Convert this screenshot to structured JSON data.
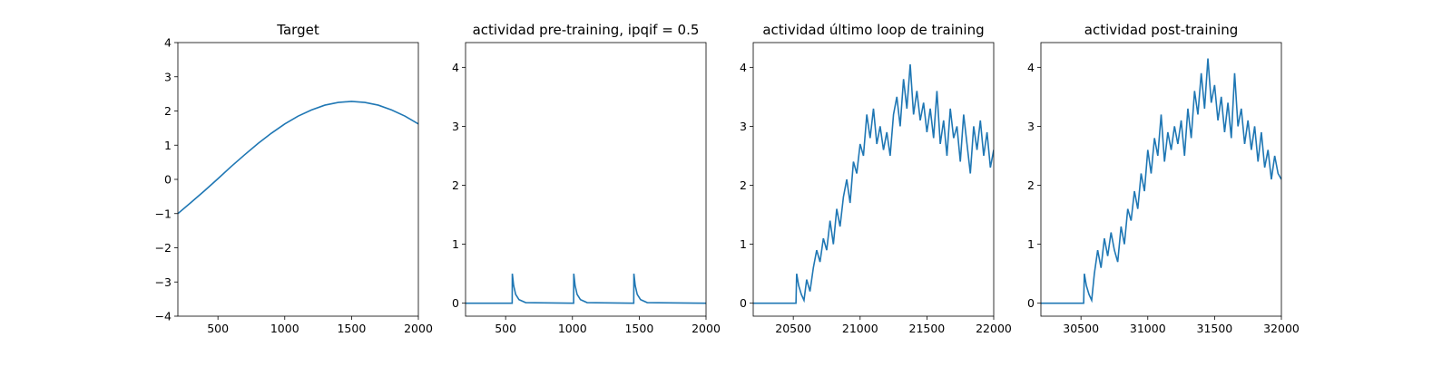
{
  "chart_data": [
    {
      "type": "line",
      "title": "Target",
      "x": [
        200,
        300,
        400,
        500,
        600,
        700,
        800,
        900,
        1000,
        1100,
        1200,
        1300,
        1400,
        1500,
        1600,
        1700,
        1800,
        1900,
        2000
      ],
      "series": [
        {
          "color": "#1f77b4",
          "values": [
            -1.0,
            -0.67,
            -0.33,
            0.02,
            0.38,
            0.72,
            1.05,
            1.35,
            1.62,
            1.85,
            2.03,
            2.17,
            2.25,
            2.28,
            2.25,
            2.17,
            2.03,
            1.85,
            1.62
          ]
        }
      ],
      "xlim": [
        200,
        2000
      ],
      "ylim": [
        -4,
        4
      ],
      "xticks": [
        500,
        1000,
        1500,
        2000
      ],
      "yticks": [
        {
          "value": -4,
          "label": "−4"
        },
        {
          "value": -3,
          "label": "−3"
        },
        {
          "value": -2,
          "label": "−2"
        },
        {
          "value": -1,
          "label": "−1"
        },
        0,
        1,
        2,
        3,
        4
      ]
    },
    {
      "type": "line",
      "title": "actividad pre-training, ipqif = 0.5",
      "x": [
        200,
        549,
        550,
        560,
        575,
        600,
        650,
        1009,
        1010,
        1020,
        1035,
        1060,
        1110,
        1459,
        1460,
        1470,
        1485,
        1510,
        1560,
        2000
      ],
      "series": [
        {
          "color": "#1f77b4",
          "values": [
            0,
            0,
            0.5,
            0.3,
            0.15,
            0.06,
            0.01,
            0,
            0.5,
            0.3,
            0.15,
            0.06,
            0.01,
            0,
            0.5,
            0.3,
            0.15,
            0.06,
            0.01,
            0
          ]
        }
      ],
      "xlim": [
        200,
        2000
      ],
      "ylim": [
        -0.22,
        4.42
      ],
      "xticks": [
        500,
        1000,
        1500,
        2000
      ],
      "yticks": [
        0,
        1,
        2,
        3,
        4
      ]
    },
    {
      "type": "line",
      "title": "actividad último loop de training",
      "x": [
        20200,
        20520,
        20525,
        20540,
        20560,
        20580,
        20600,
        20625,
        20650,
        20675,
        20700,
        20725,
        20750,
        20775,
        20800,
        20825,
        20850,
        20875,
        20900,
        20925,
        20950,
        20975,
        21000,
        21025,
        21050,
        21075,
        21100,
        21125,
        21150,
        21175,
        21200,
        21225,
        21250,
        21275,
        21300,
        21325,
        21350,
        21375,
        21400,
        21425,
        21450,
        21475,
        21500,
        21525,
        21550,
        21575,
        21600,
        21625,
        21650,
        21675,
        21700,
        21725,
        21750,
        21775,
        21800,
        21825,
        21850,
        21875,
        21900,
        21925,
        21950,
        21975,
        22000
      ],
      "series": [
        {
          "color": "#1f77b4",
          "values": [
            0,
            0,
            0.5,
            0.3,
            0.15,
            0.05,
            0.4,
            0.2,
            0.6,
            0.9,
            0.7,
            1.1,
            0.9,
            1.4,
            1.0,
            1.6,
            1.3,
            1.8,
            2.1,
            1.7,
            2.4,
            2.2,
            2.7,
            2.5,
            3.2,
            2.8,
            3.3,
            2.7,
            3.0,
            2.6,
            2.9,
            2.5,
            3.2,
            3.5,
            3.0,
            3.8,
            3.3,
            4.05,
            3.2,
            3.6,
            3.1,
            3.4,
            2.9,
            3.3,
            2.8,
            3.6,
            2.7,
            3.1,
            2.5,
            3.3,
            2.8,
            3.0,
            2.4,
            3.2,
            2.7,
            2.2,
            3.0,
            2.6,
            3.1,
            2.5,
            2.9,
            2.3,
            2.6
          ]
        }
      ],
      "xlim": [
        20200,
        22000
      ],
      "ylim": [
        -0.22,
        4.42
      ],
      "xticks": [
        20500,
        21000,
        21500,
        22000
      ],
      "yticks": [
        0,
        1,
        2,
        3,
        4
      ]
    },
    {
      "type": "line",
      "title": "actividad post-training",
      "x": [
        30200,
        30520,
        30525,
        30540,
        30560,
        30580,
        30600,
        30625,
        30650,
        30675,
        30700,
        30725,
        30750,
        30775,
        30800,
        30825,
        30850,
        30875,
        30900,
        30925,
        30950,
        30975,
        31000,
        31025,
        31050,
        31075,
        31100,
        31125,
        31150,
        31175,
        31200,
        31225,
        31250,
        31275,
        31300,
        31325,
        31350,
        31375,
        31400,
        31425,
        31450,
        31475,
        31500,
        31525,
        31550,
        31575,
        31600,
        31625,
        31650,
        31675,
        31700,
        31725,
        31750,
        31775,
        31800,
        31825,
        31850,
        31875,
        31900,
        31925,
        31950,
        31975,
        32000
      ],
      "series": [
        {
          "color": "#1f77b4",
          "values": [
            0,
            0,
            0.5,
            0.3,
            0.15,
            0.05,
            0.5,
            0.9,
            0.6,
            1.1,
            0.8,
            1.2,
            0.9,
            0.7,
            1.3,
            1.0,
            1.6,
            1.4,
            1.9,
            1.6,
            2.2,
            1.9,
            2.6,
            2.2,
            2.8,
            2.5,
            3.2,
            2.4,
            2.9,
            2.6,
            3.0,
            2.7,
            3.1,
            2.5,
            3.3,
            2.8,
            3.6,
            3.2,
            3.9,
            3.3,
            4.15,
            3.4,
            3.7,
            3.1,
            3.5,
            2.9,
            3.4,
            2.8,
            3.9,
            3.0,
            3.3,
            2.7,
            3.1,
            2.6,
            3.0,
            2.4,
            2.9,
            2.3,
            2.6,
            2.1,
            2.5,
            2.2,
            2.1
          ]
        }
      ],
      "xlim": [
        30200,
        32000
      ],
      "ylim": [
        -0.22,
        4.42
      ],
      "xticks": [
        30500,
        31000,
        31500,
        32000
      ],
      "yticks": [
        0,
        1,
        2,
        3,
        4
      ]
    }
  ]
}
